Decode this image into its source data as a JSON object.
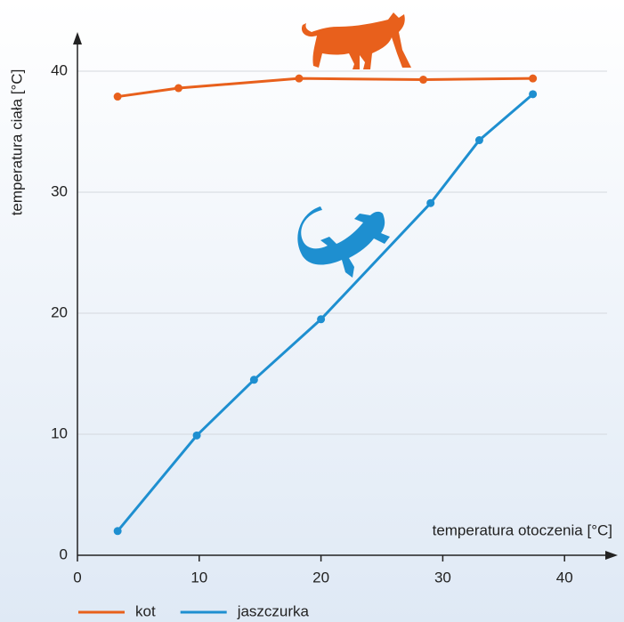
{
  "chart_data": {
    "type": "line",
    "xlabel": "temperatura otoczenia [°C]",
    "ylabel": "temperatura ciała [°C]",
    "xlim": [
      0,
      44
    ],
    "ylim": [
      0,
      43
    ],
    "xticks": [
      0,
      10,
      20,
      30,
      40
    ],
    "yticks": [
      0,
      10,
      20,
      30,
      40
    ],
    "grid": true,
    "legend": "bottom",
    "series": [
      {
        "name": "kot",
        "color": "#e8601c",
        "x": [
          3.3,
          8.3,
          18.2,
          28.4,
          37.4
        ],
        "values": [
          37.9,
          38.6,
          39.4,
          39.3,
          39.4
        ]
      },
      {
        "name": "jaszczurka",
        "color": "#1e8fd0",
        "x": [
          3.3,
          9.8,
          14.5,
          20,
          29,
          33,
          37.4
        ],
        "values": [
          2.0,
          9.9,
          14.5,
          19.5,
          29.1,
          34.3,
          38.1
        ]
      }
    ]
  }
}
